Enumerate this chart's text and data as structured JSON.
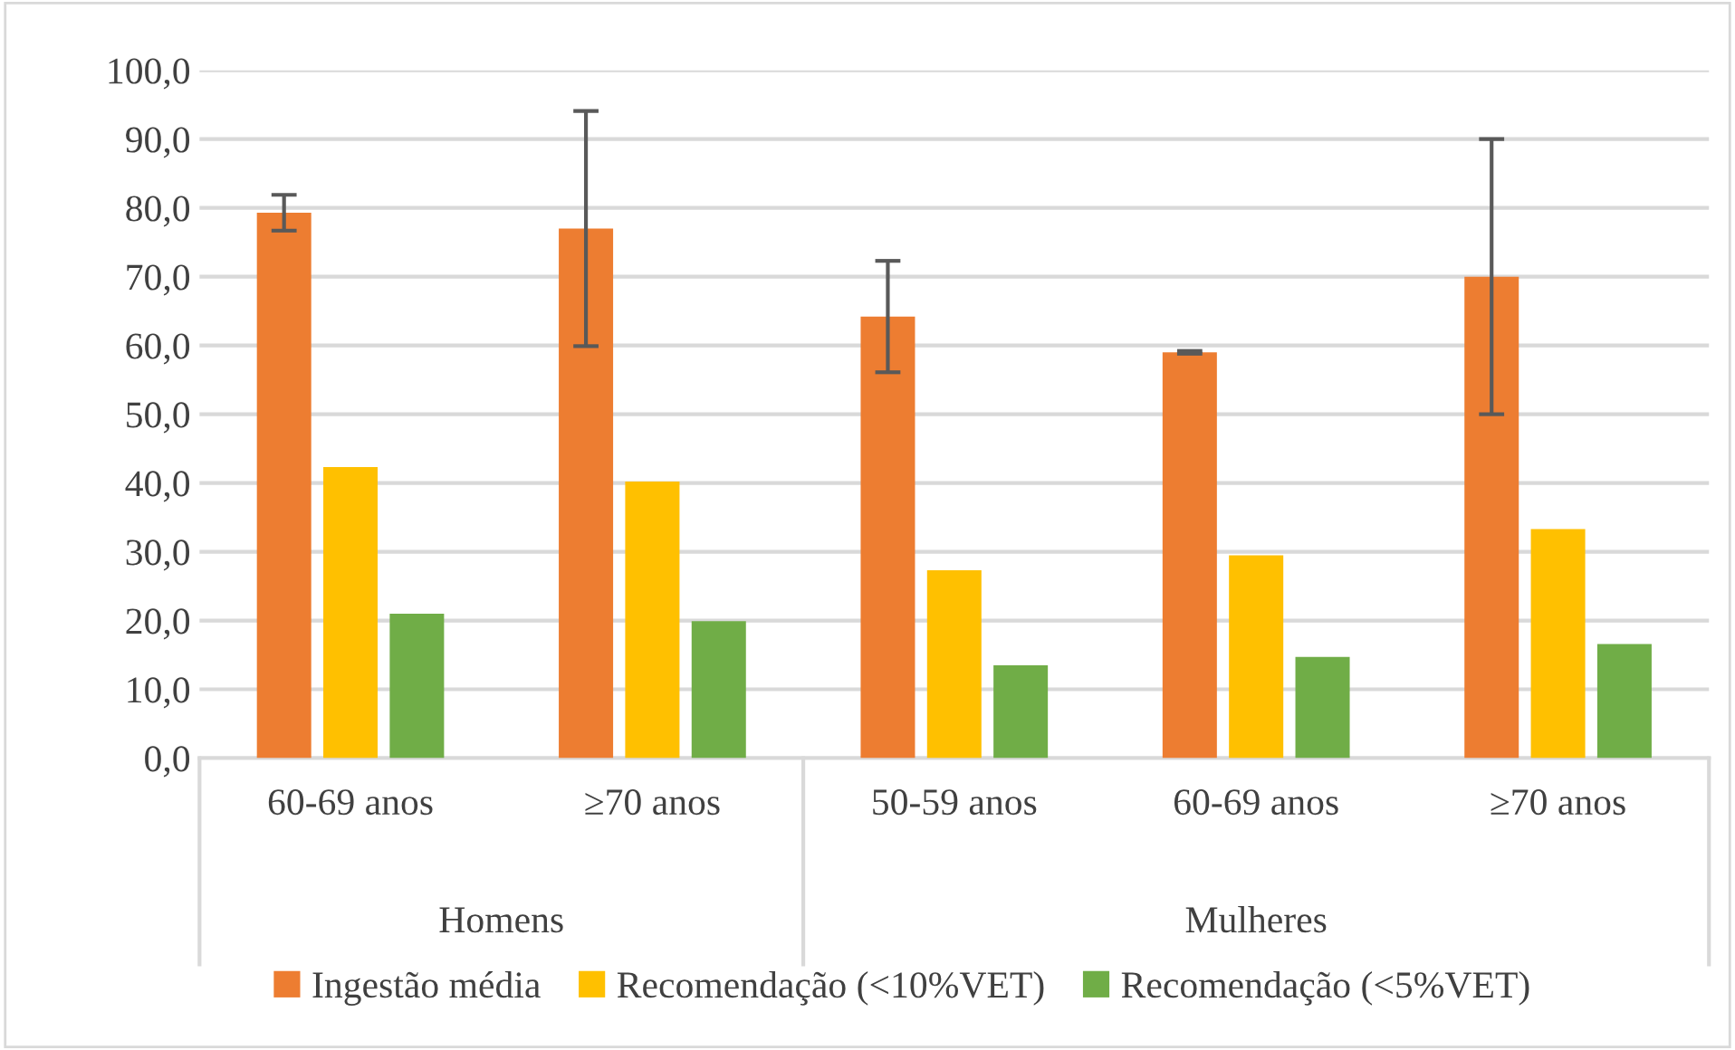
{
  "chart_data": {
    "type": "bar",
    "categories": [
      "60-69 anos",
      "≥70 anos",
      "50-59 anos",
      "60-69 anos",
      "≥70 anos"
    ],
    "annotations": [
      "Homens",
      "Mulheres"
    ],
    "series": [
      {
        "name": "Ingestão média",
        "color": "#ed7d31",
        "values": [
          79.3,
          77.0,
          64.2,
          59.0,
          70.0
        ],
        "errors": [
          2.6,
          17.1,
          8.1,
          0.2,
          20.0
        ]
      },
      {
        "name": "Recomendação (<10%VET)",
        "color": "#ffc000",
        "values": [
          42.3,
          40.2,
          27.3,
          29.5,
          33.3
        ]
      },
      {
        "name": "Recomendação (<5%VET)",
        "color": "#70ad47",
        "values": [
          21.0,
          19.9,
          13.5,
          14.7,
          16.6
        ]
      }
    ],
    "ylim": [
      0,
      100
    ],
    "yticks": [
      {
        "value": 0,
        "label": "0,0"
      },
      {
        "value": 10,
        "label": "10,0"
      },
      {
        "value": 20,
        "label": "20,0"
      },
      {
        "value": 30,
        "label": "30,0"
      },
      {
        "value": 40,
        "label": "40,0"
      },
      {
        "value": 50,
        "label": "50,0"
      },
      {
        "value": 60,
        "label": "60,0"
      },
      {
        "value": 70,
        "label": "70,0"
      },
      {
        "value": 80,
        "label": "80,0"
      },
      {
        "value": 90,
        "label": "90,0"
      },
      {
        "value": 100,
        "label": "100,0"
      }
    ],
    "grid": "y",
    "legend": "bottom"
  }
}
